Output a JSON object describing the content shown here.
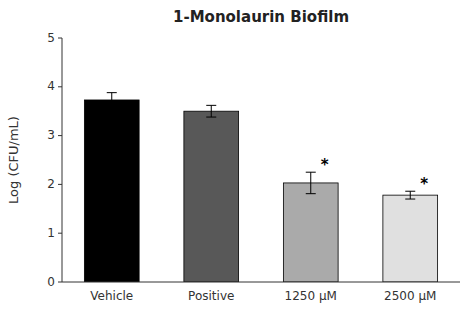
{
  "chart_data": {
    "type": "bar",
    "title": "1-Monolaurin Biofilm",
    "ylabel": "Log (CFU/mL)",
    "categories": [
      "Vehicle",
      "Positive",
      "1250 μM",
      "2500 μM"
    ],
    "values": [
      3.73,
      3.5,
      2.03,
      1.78
    ],
    "errors": [
      0.15,
      0.12,
      0.22,
      0.08
    ],
    "colors": [
      "#000000",
      "#585858",
      "#aaaaaa",
      "#e0e0e0"
    ],
    "ylim": [
      0,
      5
    ],
    "yticks": [
      0,
      1,
      2,
      3,
      4,
      5
    ],
    "grid": false,
    "annotations": [
      {
        "text": "*",
        "category": "1250 μM"
      },
      {
        "text": "*",
        "category": "2500 μM"
      }
    ]
  }
}
